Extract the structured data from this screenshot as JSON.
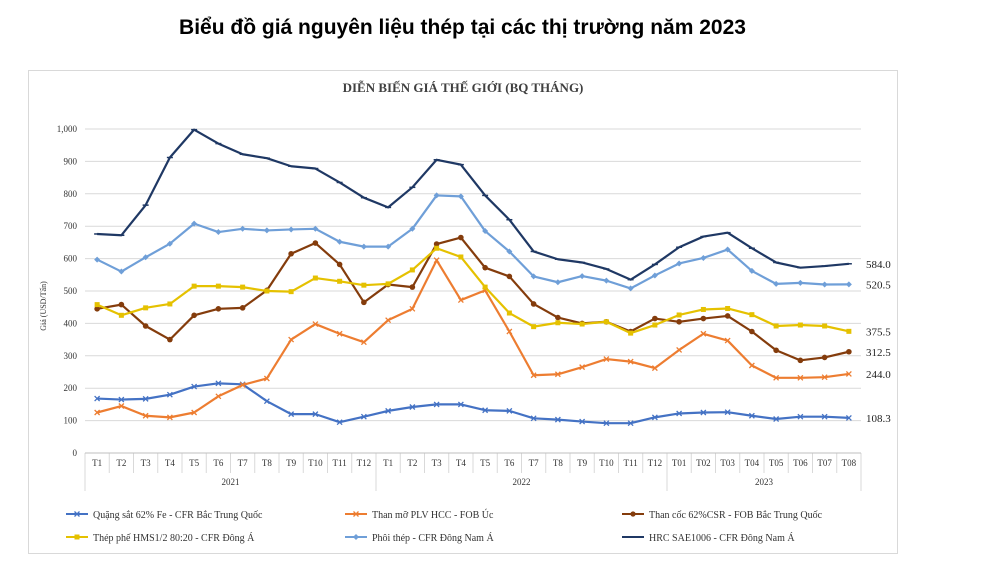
{
  "page_title": "Biểu đồ giá nguyên liệu thép tại các thị trường năm 2023",
  "chart_data": {
    "type": "line",
    "title": "DIỄN BIẾN GIÁ THẾ GIỚI (BQ THÁNG)",
    "ylabel": "Giá (USD/Tấn)",
    "xlabel": "",
    "ylim": [
      0,
      1000
    ],
    "yticks": [
      "0",
      "100",
      "200",
      "300",
      "400",
      "500",
      "600",
      "700",
      "800",
      "900",
      "1,000"
    ],
    "grid": "horizontal",
    "legend_position": "bottom",
    "categories": [
      "T1",
      "T2",
      "T3",
      "T4",
      "T5",
      "T6",
      "T7",
      "T8",
      "T9",
      "T10",
      "T11",
      "T12",
      "T1",
      "T2",
      "T3",
      "T4",
      "T5",
      "T6",
      "T7",
      "T8",
      "T9",
      "T10",
      "T11",
      "T12",
      "T01",
      "T02",
      "T03",
      "T04",
      "T05",
      "T06",
      "T07",
      "T08"
    ],
    "year_groups": [
      {
        "label": "2021",
        "start": 0,
        "end": 11
      },
      {
        "label": "2022",
        "start": 12,
        "end": 23
      },
      {
        "label": "2023",
        "start": 24,
        "end": 31
      }
    ],
    "series": [
      {
        "name": "Quặng sắt 62% Fe - CFR Bắc Trung Quốc",
        "color": "#4472c4",
        "marker": "x",
        "values": [
          168,
          165,
          167,
          180,
          205,
          215,
          212,
          160,
          120,
          120,
          95,
          112,
          130,
          142,
          150,
          150,
          132,
          130,
          107,
          103,
          97,
          92,
          92,
          110,
          122,
          125,
          126,
          115,
          105,
          112,
          112,
          108.3
        ],
        "end_label": "108.3"
      },
      {
        "name": "Than mỡ PLV HCC - FOB Úc",
        "color": "#ed7d31",
        "marker": "x",
        "values": [
          125,
          145,
          115,
          110,
          125,
          175,
          210,
          230,
          350,
          398,
          368,
          342,
          410,
          445,
          595,
          472,
          502,
          375,
          240,
          243,
          265,
          290,
          282,
          262,
          318,
          368,
          347,
          270,
          232,
          232,
          234,
          244.0
        ],
        "end_label": "244.0"
      },
      {
        "name": "Than cốc 62%CSR - FOB Bắc Trung Quốc",
        "color": "#843c0c",
        "marker": "circle",
        "values": [
          445,
          458,
          392,
          350,
          425,
          445,
          448,
          502,
          615,
          648,
          582,
          465,
          520,
          512,
          645,
          665,
          572,
          545,
          460,
          418,
          400,
          405,
          375,
          415,
          405,
          415,
          423,
          375,
          317,
          286,
          295,
          312.5
        ],
        "end_label": "312.5"
      },
      {
        "name": "Thép phế HMS1/2 80:20 - CFR Đông Á",
        "color": "#e5c100",
        "marker": "square",
        "values": [
          458,
          425,
          448,
          460,
          515,
          515,
          512,
          500,
          498,
          540,
          530,
          518,
          522,
          565,
          632,
          605,
          512,
          432,
          390,
          402,
          398,
          405,
          370,
          395,
          426,
          443,
          446,
          427,
          392,
          395,
          392,
          375.5
        ],
        "end_label": "375.5"
      },
      {
        "name": "Phôi thép - CFR Đông Nam Á",
        "color": "#6f9fd8",
        "marker": "diamond",
        "values": [
          597,
          560,
          604,
          646,
          708,
          682,
          692,
          687,
          690,
          692,
          652,
          637,
          637,
          692,
          795,
          792,
          685,
          622,
          545,
          527,
          546,
          532,
          508,
          548,
          585,
          602,
          628,
          562,
          522,
          525,
          520,
          520.5
        ],
        "end_label": "520.5"
      },
      {
        "name": "HRC SAE1006 - CFR Đông Nam Á",
        "color": "#1f3864",
        "marker": "line",
        "values": [
          676,
          672,
          765,
          912,
          998,
          955,
          922,
          910,
          885,
          878,
          835,
          788,
          758,
          820,
          905,
          890,
          795,
          720,
          622,
          598,
          588,
          568,
          535,
          582,
          635,
          668,
          680,
          632,
          588,
          572,
          577,
          584.0
        ],
        "end_label": "584.0"
      }
    ]
  }
}
